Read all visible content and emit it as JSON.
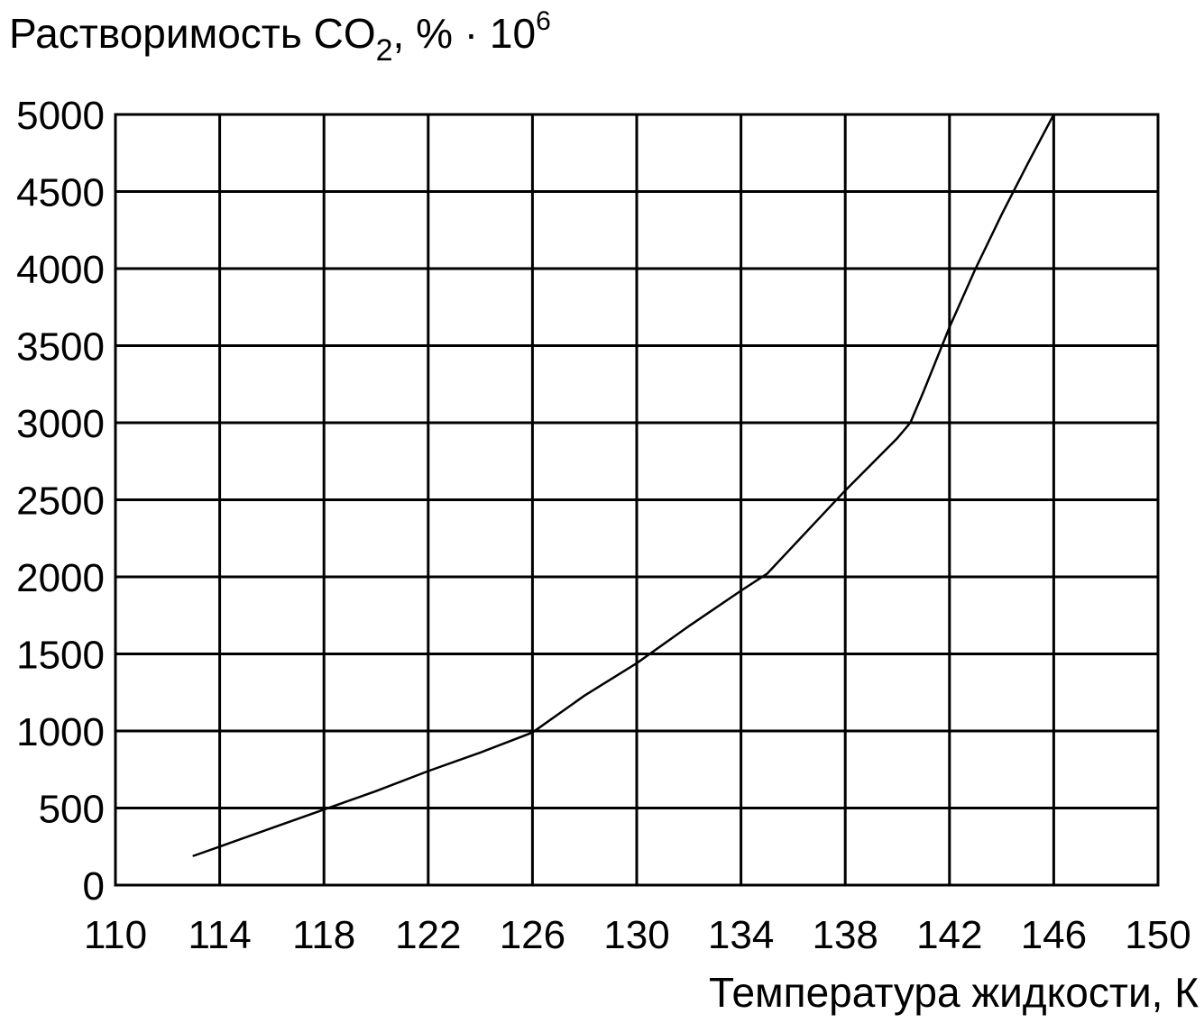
{
  "chart_data": {
    "type": "line",
    "title": "",
    "ylabel": {
      "main": "Растворимость CO",
      "subscript": "2",
      "after": ", % · 10",
      "superscript": "6"
    },
    "xlabel": "Температура жидкости, К",
    "xlim": [
      110,
      150
    ],
    "ylim": [
      0,
      5000
    ],
    "x_ticks": [
      110,
      114,
      118,
      122,
      126,
      130,
      134,
      138,
      142,
      146,
      150
    ],
    "y_ticks": [
      0,
      500,
      1000,
      1500,
      2000,
      2500,
      3000,
      3500,
      4000,
      4500,
      5000
    ],
    "grid": true,
    "legend": "none",
    "colors": {
      "line": "#000000",
      "grid": "#000000",
      "background": "#ffffff"
    },
    "series": [
      {
        "x": [
          113,
          114,
          116,
          118,
          120,
          122,
          124,
          126,
          128,
          130,
          132,
          134,
          135,
          136,
          138,
          140,
          140.5,
          141,
          142,
          143,
          144,
          145,
          146
        ],
        "y": [
          190,
          250,
          370,
          490,
          610,
          740,
          860,
          990,
          1230,
          1440,
          1680,
          1910,
          2020,
          2200,
          2560,
          2900,
          3000,
          3200,
          3620,
          4000,
          4350,
          4680,
          5000
        ]
      }
    ]
  }
}
